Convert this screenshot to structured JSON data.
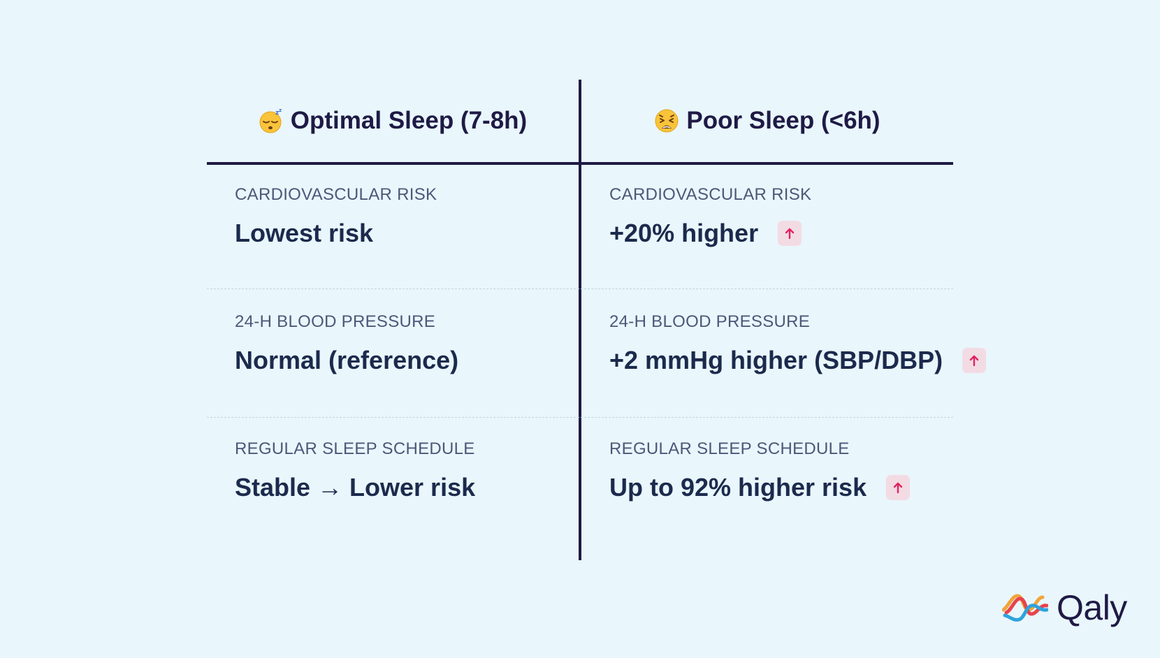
{
  "comparison": {
    "left": {
      "emoji_icon": "sleeping-face-icon",
      "title": "Optimal Sleep (7-8h)",
      "rows": [
        {
          "label": "CARDIOVASCULAR RISK",
          "value": "Lowest risk"
        },
        {
          "label": "24-H BLOOD PRESSURE",
          "value": "Normal (reference)"
        },
        {
          "label": "REGULAR SLEEP SCHEDULE",
          "value": "Stable → Lower risk"
        }
      ]
    },
    "right": {
      "emoji_icon": "tired-face-icon",
      "title": "Poor Sleep (<6h)",
      "rows": [
        {
          "label": "CARDIOVASCULAR RISK",
          "value": "+20% higher",
          "indicator": "arrow-up-icon"
        },
        {
          "label": "24-H BLOOD PRESSURE",
          "value": "+2 mmHg higher (SBP/DBP)",
          "indicator": "arrow-up-icon"
        },
        {
          "label": "REGULAR SLEEP SCHEDULE",
          "value": "Up to 92% higher risk",
          "indicator": "arrow-up-icon"
        }
      ]
    }
  },
  "brand": {
    "name": "Qaly",
    "logo_icon": "qaly-wave-logo-icon"
  },
  "colors": {
    "background": "#e9f6fc",
    "heading": "#1f1a45",
    "label": "#4c5878",
    "value": "#1b2a4c",
    "badge_bg": "#f3dbe4",
    "badge_arrow": "#e0245e"
  }
}
